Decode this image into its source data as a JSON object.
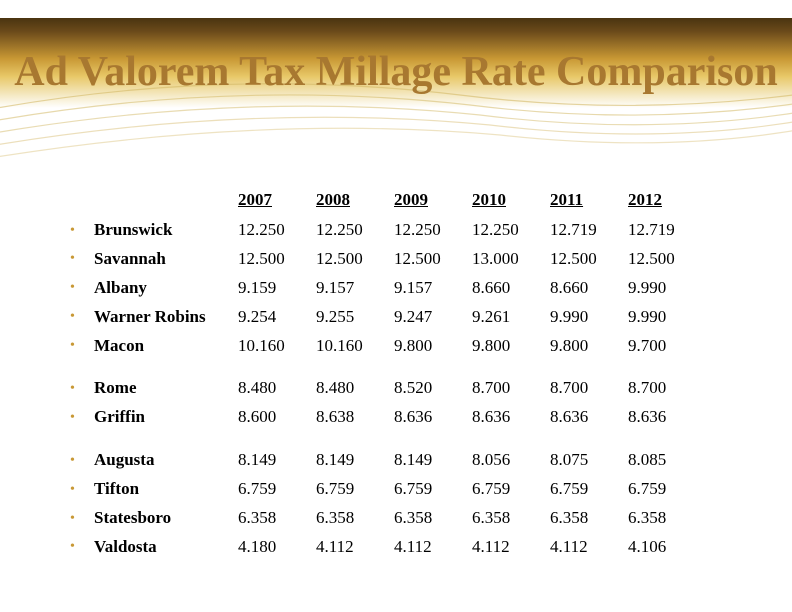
{
  "slide": {
    "title": "Ad Valorem Tax Millage Rate Comparison",
    "title_color": "#a87830",
    "bullet_color": "#c89834",
    "header_gradient": [
      "#4a3410",
      "#6b4a1a",
      "#c89834",
      "#e8c868",
      "#f4e8c0",
      "#ffffff"
    ],
    "background_color": "#ffffff"
  },
  "table": {
    "type": "table",
    "years": [
      "2007",
      "2008",
      "2009",
      "2010",
      "2011",
      "2012"
    ],
    "groups": [
      {
        "rows": [
          {
            "city": "Brunswick",
            "values": [
              "12.250",
              "12.250",
              "12.250",
              "12.250",
              "12.719",
              "12.719"
            ]
          },
          {
            "city": "Savannah",
            "values": [
              "12.500",
              "12.500",
              "12.500",
              "13.000",
              "12.500",
              "12.500"
            ]
          },
          {
            "city": "Albany",
            "values": [
              "9.159",
              "9.157",
              "9.157",
              "8.660",
              "8.660",
              "9.990"
            ]
          },
          {
            "city": "Warner Robins",
            "values": [
              "9.254",
              "9.255",
              "9.247",
              "9.261",
              "9.990",
              "9.990"
            ]
          },
          {
            "city": "Macon",
            "values": [
              "10.160",
              "10.160",
              "9.800",
              "9.800",
              "9.800",
              "9.700"
            ]
          }
        ]
      },
      {
        "rows": [
          {
            "city": "Rome",
            "values": [
              "8.480",
              "8.480",
              "8.520",
              "8.700",
              "8.700",
              "8.700"
            ]
          },
          {
            "city": "Griffin",
            "values": [
              "8.600",
              "8.638",
              "8.636",
              "8.636",
              "8.636",
              "8.636"
            ]
          }
        ]
      },
      {
        "rows": [
          {
            "city": "Augusta",
            "values": [
              "8.149",
              "8.149",
              "8.149",
              "8.056",
              "8.075",
              "8.085"
            ]
          },
          {
            "city": "Tifton",
            "values": [
              "6.759",
              "6.759",
              "6.759",
              "6.759",
              "6.759",
              "6.759"
            ]
          },
          {
            "city": "Statesboro",
            "values": [
              "6.358",
              "6.358",
              "6.358",
              "6.358",
              "6.358",
              "6.358"
            ]
          },
          {
            "city": "Valdosta",
            "values": [
              "4.180",
              "4.112",
              "4.112",
              "4.112",
              "4.112",
              "4.106"
            ]
          }
        ]
      }
    ]
  }
}
